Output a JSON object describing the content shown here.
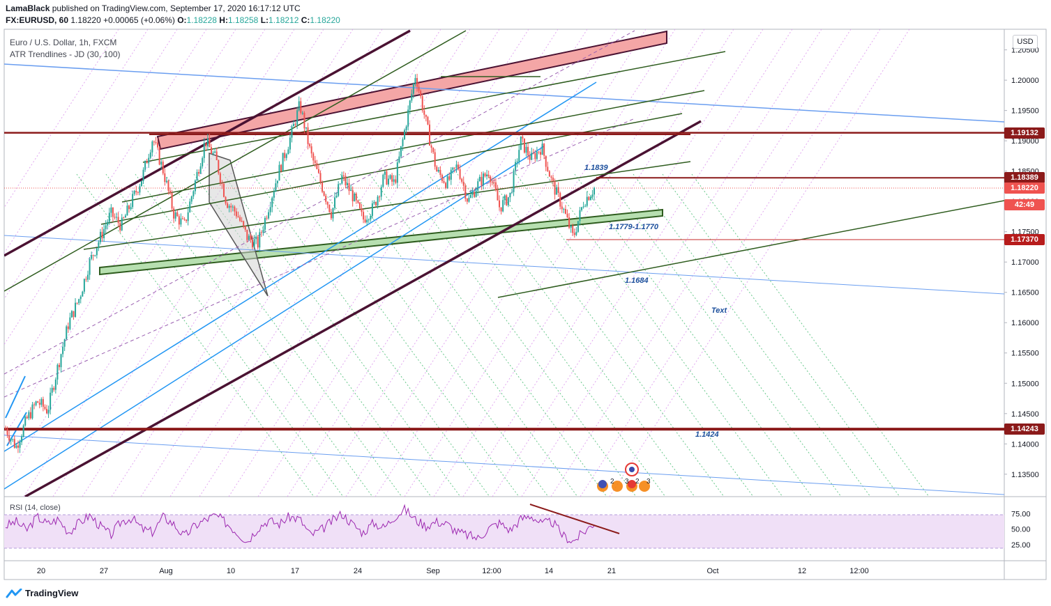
{
  "header": {
    "publisher": "LamaBlack",
    "published_text": "published on TradingView.com, September 17, 2020 16:17:12 UTC",
    "symbol": "FX:EURUSD, 60",
    "last": "1.18220",
    "change": "+0.00065 (+0.06%)",
    "o_label": "O:",
    "o_val": "1.18228",
    "h_label": "H:",
    "h_val": "1.18258",
    "l_label": "L:",
    "l_val": "1.18212",
    "c_label": "C:",
    "c_val": "1.18220"
  },
  "legend": {
    "title": "Euro / U.S. Dollar, 1h, FXCM",
    "indicator": "ATR Trendlines - JD (30, 100)",
    "rsi": "RSI (14, close)"
  },
  "currency": "USD",
  "footer": {
    "brand": "TradingView"
  },
  "colors": {
    "up": "#26a69a",
    "down": "#ef5350",
    "maroon": "#8b1a1a",
    "dark_purple": "#4a1232",
    "dark_green": "#2e5c1e",
    "blue": "#2196f3",
    "light_blue": "#6a9ef0",
    "rsi_line": "#9c27b0",
    "rsi_band": "#f0e0f7",
    "pink_channel": "#f4a6a6",
    "green_channel": "#b7dfb0"
  },
  "chart_data": {
    "type": "candlestick",
    "title": "Euro / U.S. Dollar, 1h, FXCM",
    "x_ticks": [
      "20",
      "27",
      "Aug",
      "10",
      "17",
      "24",
      "Sep",
      "12:00",
      "14",
      "21",
      "Oct",
      "12",
      "12:00"
    ],
    "y_ticks": [
      "1.20500",
      "1.20000",
      "1.19500",
      "1.19000",
      "1.18500",
      "1.18000",
      "1.17500",
      "1.17000",
      "1.16500",
      "1.16000",
      "1.15500",
      "1.15000",
      "1.14500",
      "1.14000",
      "1.13500"
    ],
    "ylim": [
      1.1313,
      1.2084
    ],
    "price_path": [
      [
        1.1425,
        1.1395,
        1.144,
        1.147,
        1.1455,
        1.153,
        1.16,
        1.164,
        1.17,
        1.174,
        1.178,
        1.176,
        1.18,
        1.184,
        1.1905,
        1.185,
        1.178,
        1.176,
        1.183,
        1.19,
        1.187,
        1.18,
        1.178,
        1.174,
        1.173,
        1.179,
        1.185,
        1.19,
        1.196,
        1.188,
        1.183,
        1.178,
        1.184,
        1.181,
        1.177,
        1.179,
        1.184,
        1.183,
        1.192,
        1.201,
        1.193,
        1.185,
        1.183,
        1.186,
        1.18,
        1.183,
        1.185,
        1.179,
        1.181,
        1.19,
        1.187,
        1.189,
        1.183,
        1.179,
        1.174,
        1.18,
        1.1822
      ]
    ],
    "horizontal_levels": [
      {
        "value": 1.19132,
        "label": "1.19132"
      },
      {
        "value": 1.18389,
        "label": "1.18389"
      },
      {
        "value": 1.1822,
        "label": "1.18220"
      },
      {
        "value": 1.1737,
        "label": "1.17370"
      },
      {
        "value": 1.14243,
        "label": "1.14243"
      }
    ],
    "countdown": "42:49",
    "annotations": [
      "1.1839",
      "1.1779-1.1770",
      "1.1684",
      "Text",
      "1.1424"
    ],
    "rsi": {
      "name": "RSI (14, close)",
      "y_ticks": [
        "75.00",
        "50.00",
        "25.00"
      ],
      "upper": 70,
      "lower": 30,
      "path": [
        55,
        62,
        48,
        70,
        58,
        66,
        45,
        60,
        72,
        55,
        40,
        62,
        68,
        50,
        45,
        70,
        58,
        38,
        55,
        65,
        72,
        60,
        45,
        30,
        52,
        64,
        58,
        70,
        66,
        40,
        48,
        62,
        75,
        58,
        44,
        60,
        52,
        70,
        82,
        65,
        55,
        62,
        58,
        45,
        40,
        35,
        52,
        60,
        48,
        66,
        72,
        58,
        62,
        40,
        30,
        45,
        60
      ]
    }
  }
}
